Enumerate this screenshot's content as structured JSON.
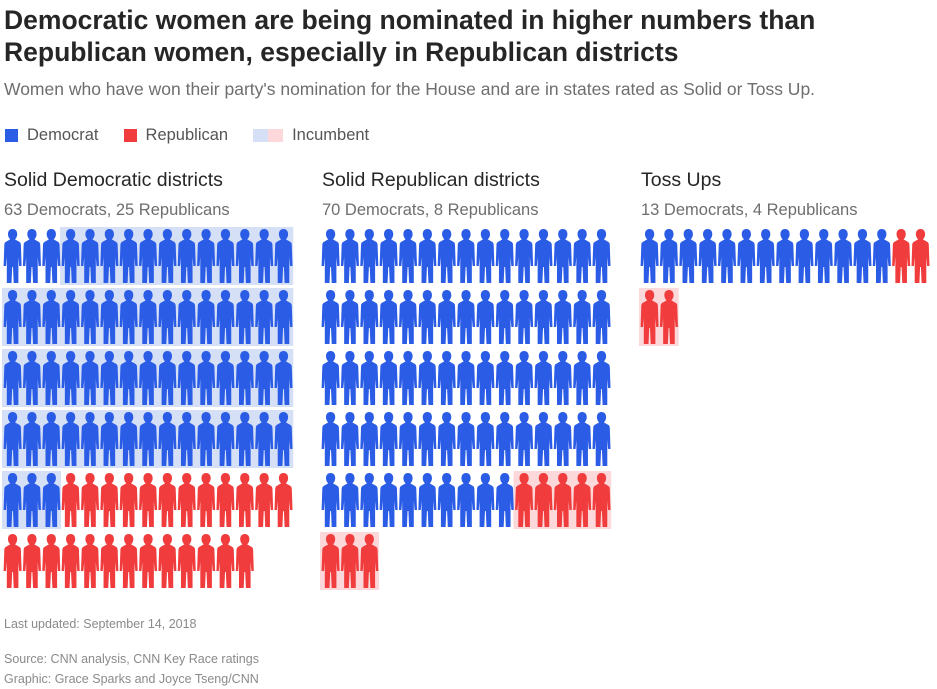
{
  "title": "Democratic women are being nominated in higher numbers than Republican women, especially in Republican districts",
  "subtitle": "Women who have won their party's nomination for the House and are in states rated as Solid or Toss Up.",
  "legend": {
    "democrat": "Democrat",
    "republican": "Republican",
    "incumbent": "Incumbent"
  },
  "colors": {
    "democrat": "#2b5ce6",
    "republican": "#f03c3c",
    "democrat_incumbent_bg": "#d5e0f7",
    "republican_incumbent_bg": "#fcd8da"
  },
  "chart_data": {
    "type": "waffle",
    "unit": "one figure = one woman nominee",
    "panels": [
      {
        "title": "Solid Democratic districts",
        "subtitle": "63 Democrats, 25 Republicans",
        "democrats": 63,
        "republicans": 25,
        "democrat_incumbents": 60,
        "republican_incumbents": 0
      },
      {
        "title": "Solid Republican districts",
        "subtitle": "70 Democrats, 8 Republicans",
        "democrats": 70,
        "republicans": 8,
        "democrat_incumbents": 0,
        "republican_incumbents": 8
      },
      {
        "title": "Toss Ups",
        "subtitle": "13 Democrats, 4 Republicans",
        "democrats": 13,
        "republicans": 4,
        "democrat_incumbents": 0,
        "republican_incumbents": 2
      }
    ]
  },
  "footer": {
    "updated": "Last updated: September 14, 2018",
    "source": "Source: CNN analysis, CNN Key Race ratings",
    "graphic": "Graphic: Grace Sparks and Joyce Tseng/CNN"
  }
}
